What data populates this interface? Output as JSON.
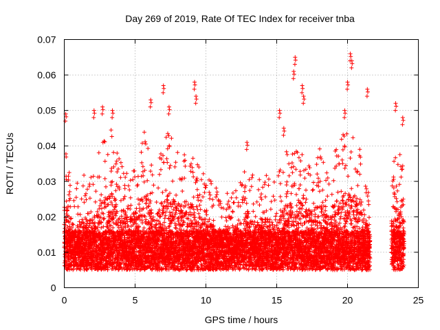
{
  "chart_data": {
    "type": "scatter",
    "title": "Day 269 of 2019, Rate Of TEC Index for receiver tnba",
    "xlabel": "GPS time / hours",
    "ylabel": "ROTI / TECUs",
    "xlim": [
      0,
      25
    ],
    "ylim": [
      0,
      0.07
    ],
    "x_ticks": [
      "0",
      "5",
      "10",
      "15",
      "20",
      "25"
    ],
    "y_ticks": [
      "0",
      "0.01",
      "0.02",
      "0.03",
      "0.04",
      "0.05",
      "0.06",
      "0.07"
    ],
    "grid": true,
    "marker": "plus",
    "color": "#ff0000",
    "segments": [
      {
        "x_start": 0.0,
        "x_end": 21.6,
        "step": 0.0083
      },
      {
        "x_start": 23.1,
        "x_end": 24.0,
        "step": 0.0083
      }
    ],
    "envelope": [
      {
        "x": 0.0,
        "y": 0.042
      },
      {
        "x": 0.2,
        "y": 0.04
      },
      {
        "x": 0.5,
        "y": 0.026
      },
      {
        "x": 0.9,
        "y": 0.03
      },
      {
        "x": 1.4,
        "y": 0.033
      },
      {
        "x": 2.0,
        "y": 0.031
      },
      {
        "x": 2.5,
        "y": 0.04
      },
      {
        "x": 3.0,
        "y": 0.043
      },
      {
        "x": 3.3,
        "y": 0.045
      },
      {
        "x": 4.0,
        "y": 0.038
      },
      {
        "x": 4.5,
        "y": 0.033
      },
      {
        "x": 5.0,
        "y": 0.036
      },
      {
        "x": 5.6,
        "y": 0.045
      },
      {
        "x": 6.0,
        "y": 0.042
      },
      {
        "x": 6.5,
        "y": 0.035
      },
      {
        "x": 7.0,
        "y": 0.042
      },
      {
        "x": 7.5,
        "y": 0.045
      },
      {
        "x": 8.0,
        "y": 0.04
      },
      {
        "x": 8.5,
        "y": 0.038
      },
      {
        "x": 9.0,
        "y": 0.04
      },
      {
        "x": 9.5,
        "y": 0.036
      },
      {
        "x": 10.0,
        "y": 0.032
      },
      {
        "x": 10.5,
        "y": 0.03
      },
      {
        "x": 11.0,
        "y": 0.026
      },
      {
        "x": 11.5,
        "y": 0.03
      },
      {
        "x": 12.0,
        "y": 0.028
      },
      {
        "x": 12.5,
        "y": 0.03
      },
      {
        "x": 13.0,
        "y": 0.036
      },
      {
        "x": 13.5,
        "y": 0.03
      },
      {
        "x": 14.0,
        "y": 0.033
      },
      {
        "x": 14.5,
        "y": 0.031
      },
      {
        "x": 15.0,
        "y": 0.03
      },
      {
        "x": 15.5,
        "y": 0.038
      },
      {
        "x": 16.0,
        "y": 0.04
      },
      {
        "x": 16.5,
        "y": 0.042
      },
      {
        "x": 17.0,
        "y": 0.038
      },
      {
        "x": 17.5,
        "y": 0.036
      },
      {
        "x": 18.0,
        "y": 0.04
      },
      {
        "x": 18.5,
        "y": 0.037
      },
      {
        "x": 19.0,
        "y": 0.04
      },
      {
        "x": 19.5,
        "y": 0.042
      },
      {
        "x": 20.0,
        "y": 0.046
      },
      {
        "x": 20.5,
        "y": 0.044
      },
      {
        "x": 21.0,
        "y": 0.038
      },
      {
        "x": 21.6,
        "y": 0.026
      },
      {
        "x": 23.1,
        "y": 0.036
      },
      {
        "x": 23.5,
        "y": 0.04
      },
      {
        "x": 24.0,
        "y": 0.038
      }
    ],
    "peaks": [
      {
        "x": 0.1,
        "y": 0.049
      },
      {
        "x": 2.1,
        "y": 0.05
      },
      {
        "x": 2.7,
        "y": 0.051
      },
      {
        "x": 3.4,
        "y": 0.05
      },
      {
        "x": 6.1,
        "y": 0.053
      },
      {
        "x": 7.0,
        "y": 0.057
      },
      {
        "x": 7.4,
        "y": 0.051
      },
      {
        "x": 9.2,
        "y": 0.058
      },
      {
        "x": 9.3,
        "y": 0.054
      },
      {
        "x": 12.9,
        "y": 0.041
      },
      {
        "x": 15.2,
        "y": 0.05
      },
      {
        "x": 15.5,
        "y": 0.045
      },
      {
        "x": 16.3,
        "y": 0.065
      },
      {
        "x": 16.2,
        "y": 0.061
      },
      {
        "x": 16.8,
        "y": 0.057
      },
      {
        "x": 16.9,
        "y": 0.054
      },
      {
        "x": 19.8,
        "y": 0.05
      },
      {
        "x": 20.0,
        "y": 0.058
      },
      {
        "x": 20.2,
        "y": 0.066
      },
      {
        "x": 20.3,
        "y": 0.064
      },
      {
        "x": 21.4,
        "y": 0.056
      },
      {
        "x": 23.4,
        "y": 0.052
      },
      {
        "x": 23.9,
        "y": 0.048
      }
    ]
  }
}
